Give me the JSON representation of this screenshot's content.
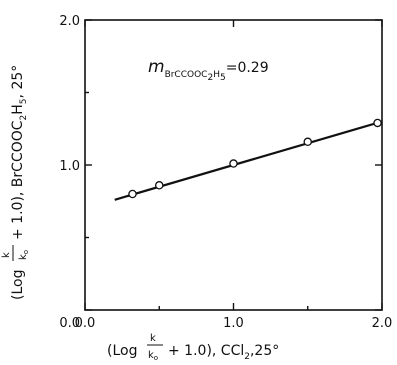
{
  "chart_data": {
    "type": "scatter",
    "xlim": [
      0.0,
      2.0
    ],
    "ylim": [
      0.0,
      2.0
    ],
    "x_ticks": [
      "0.0",
      "1.0",
      "2.0"
    ],
    "y_ticks": [
      "0.0",
      "1.0",
      "2.0"
    ],
    "xlabel": "(Log k/k₀ + 1.0), CCl₂ ,25°",
    "ylabel": "(Log k/k₀ + 1.0), BrCCOOC₂H₅,25°",
    "annotation": "m BrCCOOC₂H₅ = 0.29",
    "points": [
      {
        "x": 0.32,
        "y": 0.8
      },
      {
        "x": 0.5,
        "y": 0.86
      },
      {
        "x": 1.0,
        "y": 1.01
      },
      {
        "x": 1.5,
        "y": 1.16
      },
      {
        "x": 1.97,
        "y": 1.29
      }
    ],
    "fit_line": {
      "x": [
        0.2,
        2.0
      ],
      "y": [
        0.76,
        1.3
      ]
    },
    "grid": false
  },
  "labels": {
    "y_prefix": "(Log",
    "y_suffix": "+ 1.0), BrCCOOC",
    "y_sub1": "2",
    "y_mid": "H",
    "y_sub2": "5",
    "y_end": ", 25°",
    "x_prefix": "(Log",
    "x_suffix": "+ 1.0),  CCl",
    "x_sub": "2",
    "x_end": ",25°",
    "frac_num": "k",
    "frac_den": "k",
    "frac_den_sub": "o",
    "ann_m": "m",
    "ann_sub1": "BrCCOOC",
    "ann_sub2": "2",
    "ann_sub3": "H",
    "ann_sub4": "5",
    "ann_val": "=0.29"
  }
}
